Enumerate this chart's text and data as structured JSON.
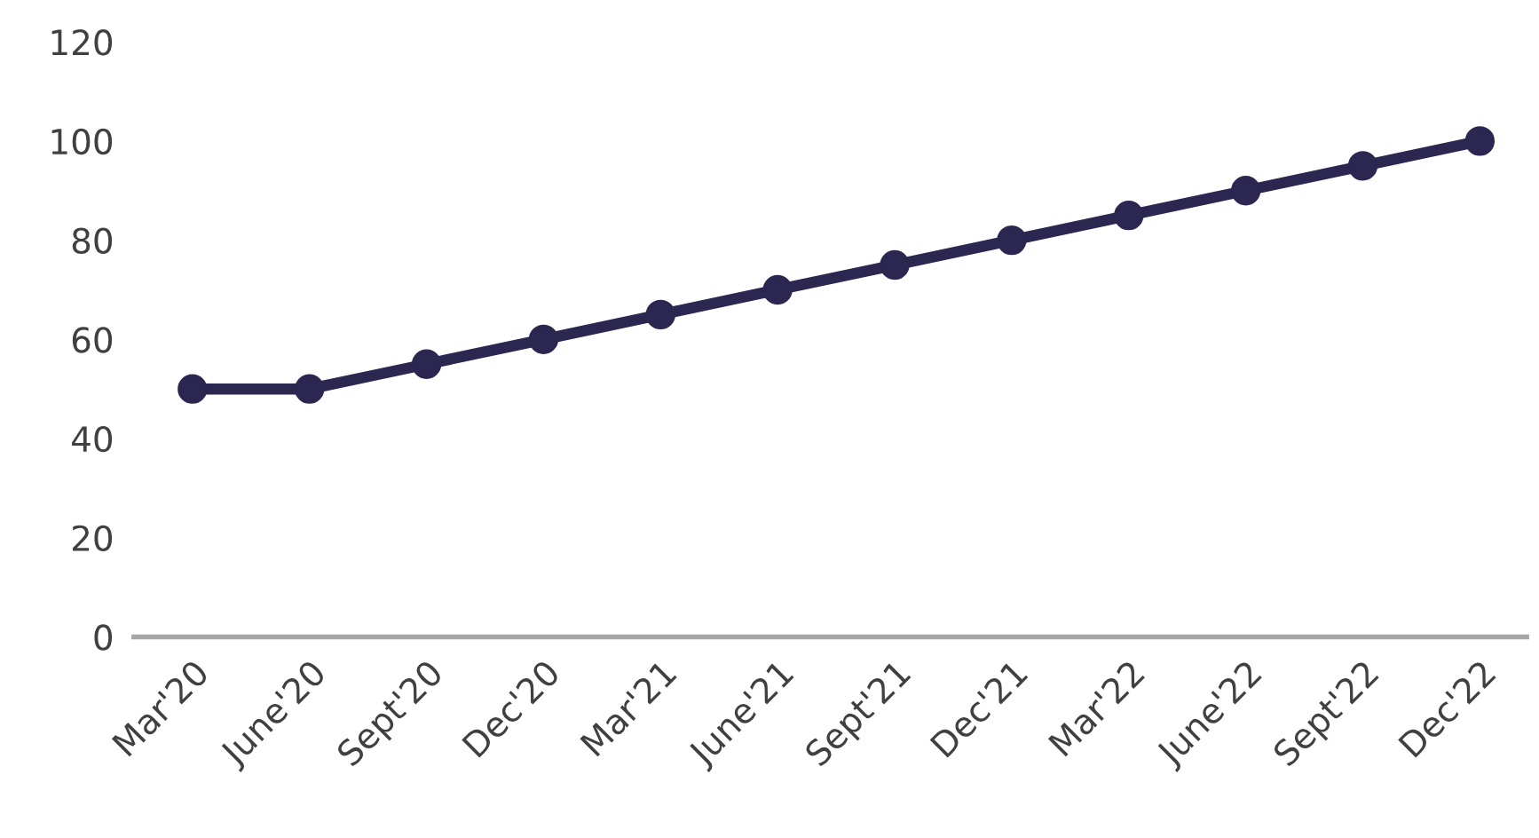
{
  "chart_data": {
    "type": "line",
    "categories": [
      "Mar'20",
      "June'20",
      "Sept'20",
      "Dec'20",
      "Mar'21",
      "June'21",
      "Sept'21",
      "Dec'21",
      "Mar'22",
      "June'22",
      "Sept'22",
      "Dec'22"
    ],
    "series": [
      {
        "color": "#2b2750",
        "values": [
          50,
          50,
          55,
          60,
          65,
          70,
          75,
          80,
          85,
          90,
          95,
          100
        ]
      }
    ],
    "ylim": [
      0,
      120
    ],
    "yticks": [
      0,
      20,
      40,
      60,
      80,
      100,
      120
    ],
    "grid": false,
    "legend": false,
    "marker": "circle",
    "line_style": "solid"
  }
}
